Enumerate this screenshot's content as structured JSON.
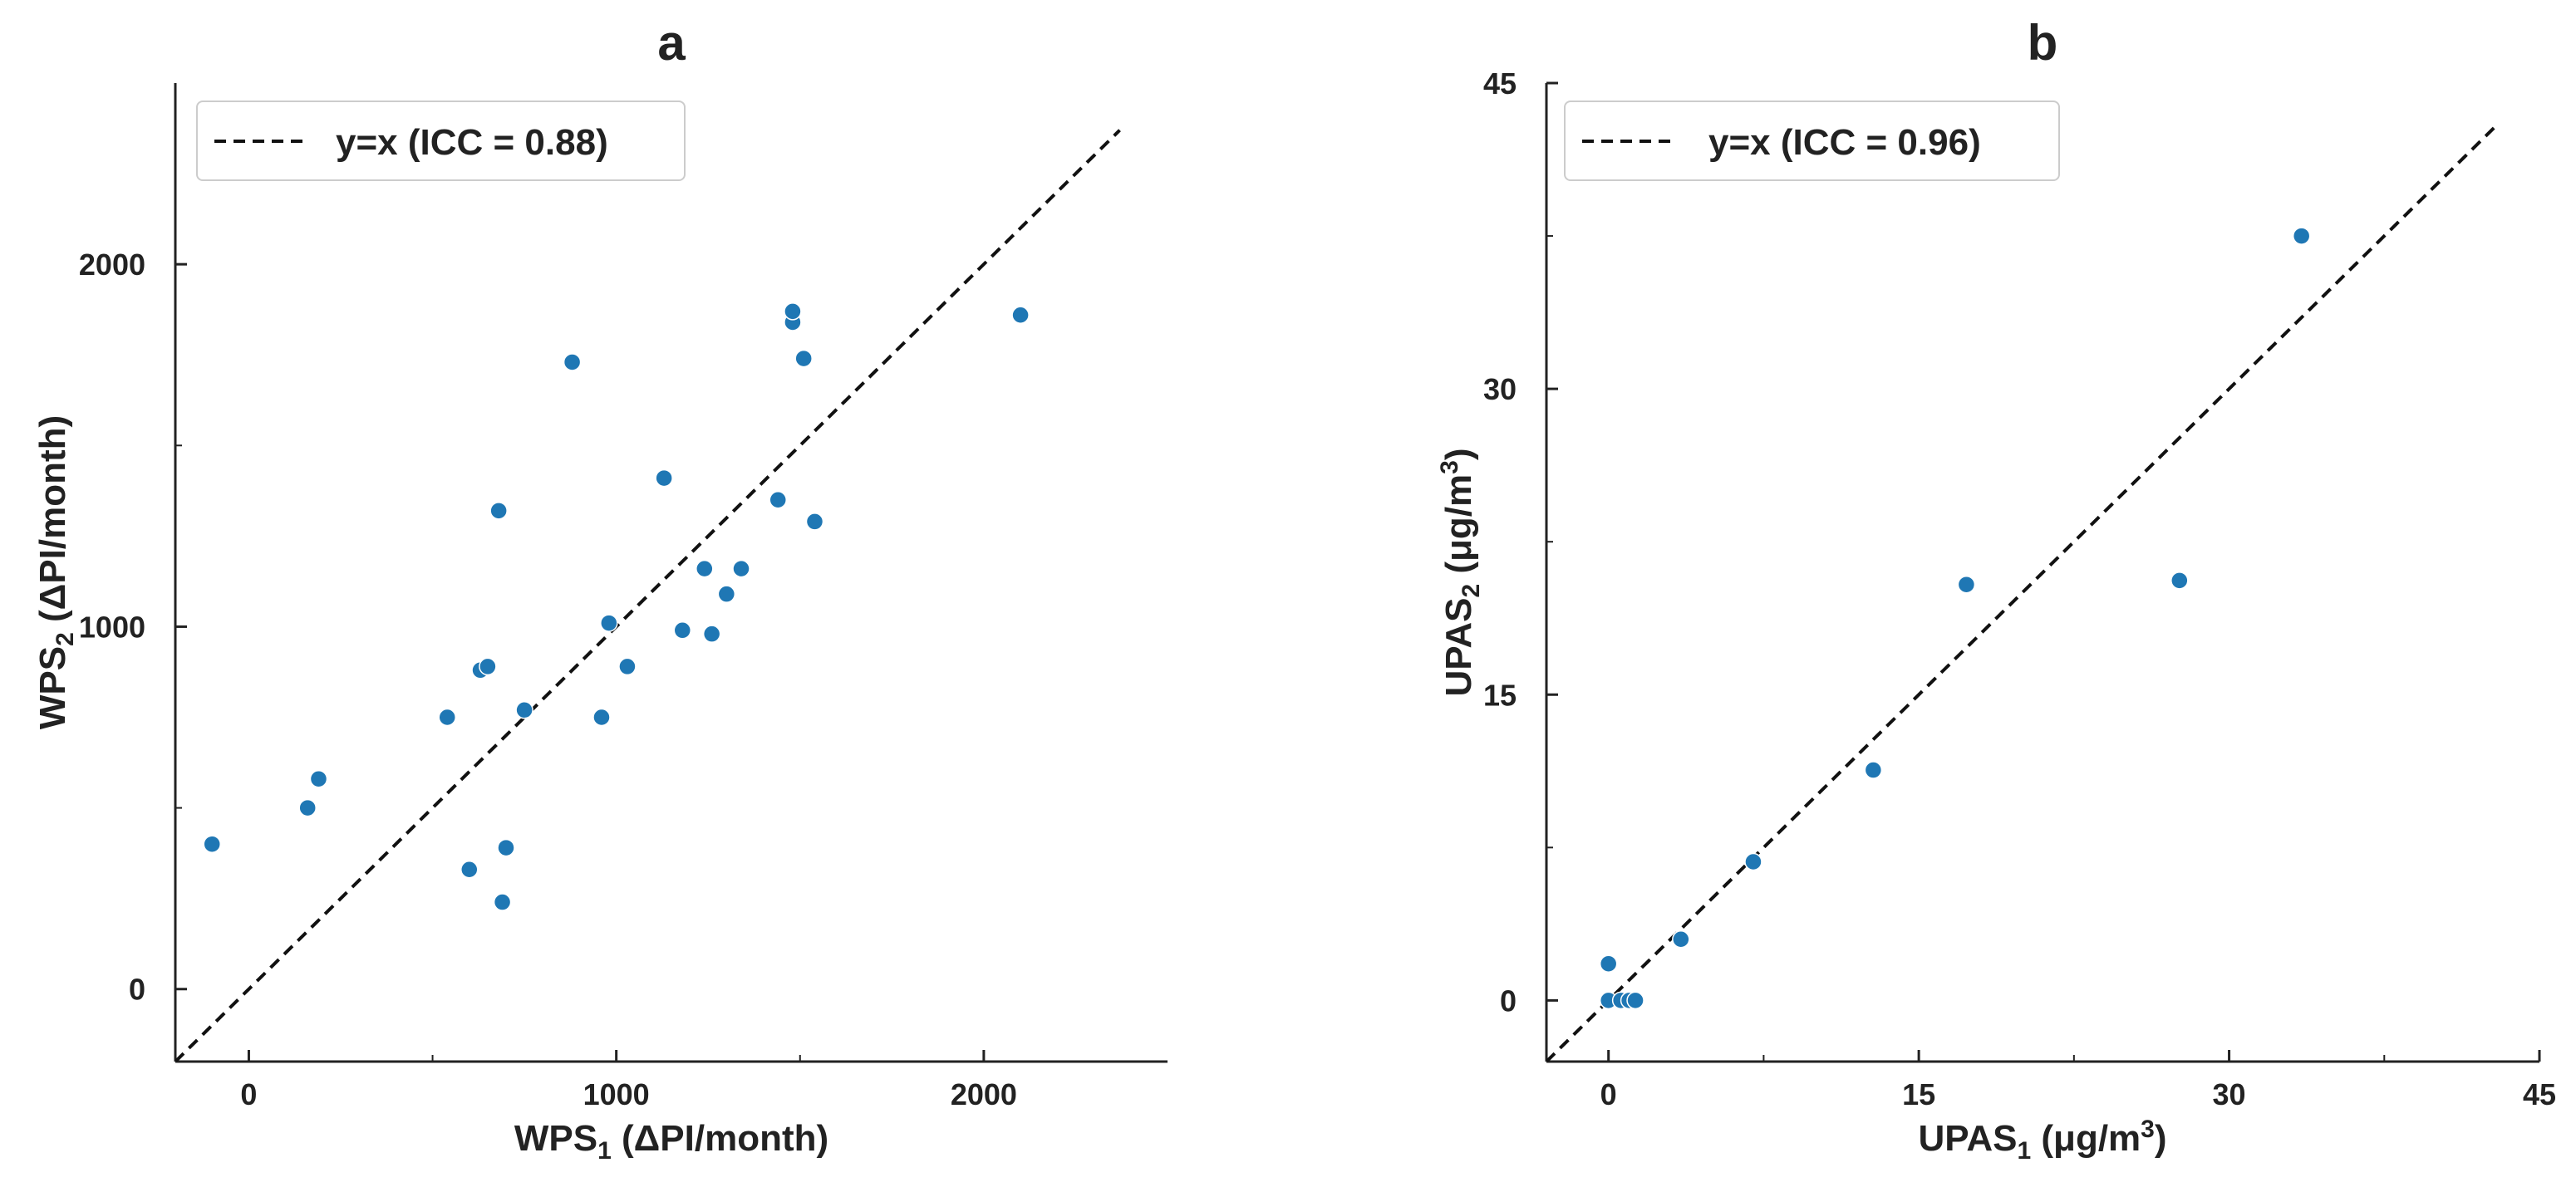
{
  "chart_data": [
    {
      "type": "scatter",
      "panel": "a",
      "title": "a",
      "xlabel": {
        "main": "WPS",
        "sub": "1",
        "suffix": " (ΔPI/month)"
      },
      "ylabel": {
        "main": "WPS",
        "sub": "2",
        "suffix": " (ΔPI/month)"
      },
      "xlim": [
        -200,
        2500
      ],
      "ylim": [
        -200,
        2500
      ],
      "xticks": [
        0,
        1000,
        2000
      ],
      "xtick_labels": [
        "0",
        "1000",
        "2000"
      ],
      "yticks": [
        0,
        1000,
        2000
      ],
      "ytick_labels": [
        "0",
        "1000",
        "2000"
      ],
      "minor_ticks": [
        500,
        1500
      ],
      "grid": false,
      "legend": {
        "label": "y=x (ICC = 0.88)",
        "position": "top-left"
      },
      "reference_line": {
        "type": "y=x",
        "style": "dashed",
        "color": "#111111",
        "end": 2370
      },
      "point_color": "#1f77b4",
      "series": [
        {
          "name": "WPS",
          "x": [
            -100,
            160,
            190,
            540,
            600,
            630,
            650,
            680,
            690,
            700,
            750,
            880,
            960,
            980,
            1030,
            1130,
            1180,
            1240,
            1260,
            1300,
            1340,
            1440,
            1480,
            1480,
            1510,
            1540,
            2100
          ],
          "y": [
            400,
            500,
            580,
            750,
            330,
            880,
            890,
            1320,
            240,
            390,
            770,
            1730,
            750,
            1010,
            890,
            1410,
            990,
            1160,
            980,
            1090,
            1160,
            1350,
            1840,
            1870,
            1740,
            1290,
            1860
          ]
        }
      ]
    },
    {
      "type": "scatter",
      "panel": "b",
      "title": "b",
      "xlabel": {
        "main": "UPAS",
        "sub": "1",
        "suffix": " (μg/m",
        "sup": "3",
        "close": ")"
      },
      "ylabel": {
        "main": "UPAS",
        "sub": "2",
        "suffix": " (μg/m",
        "sup": "3",
        "close": ")"
      },
      "xlim": [
        -3,
        45
      ],
      "ylim": [
        -3,
        45
      ],
      "xticks": [
        0,
        15,
        30,
        45
      ],
      "xtick_labels": [
        "0",
        "15",
        "30",
        "45"
      ],
      "yticks": [
        0,
        15,
        30,
        45
      ],
      "ytick_labels": [
        "0",
        "15",
        "30",
        "45"
      ],
      "minor_ticks": [
        7.5,
        22.5,
        37.5
      ],
      "grid": false,
      "legend": {
        "label": "y=x (ICC = 0.96)",
        "position": "top-left"
      },
      "reference_line": {
        "type": "y=x",
        "style": "dashed",
        "color": "#111111",
        "end": 42.8
      },
      "point_color": "#1f77b4",
      "series": [
        {
          "name": "UPAS",
          "x": [
            0.0,
            0.0,
            0.6,
            1.0,
            1.3,
            3.5,
            7.0,
            12.8,
            17.3,
            27.6,
            33.5
          ],
          "y": [
            1.8,
            0.0,
            0.0,
            0.0,
            0.0,
            3.0,
            6.8,
            11.3,
            20.4,
            20.6,
            37.5
          ]
        }
      ]
    }
  ]
}
